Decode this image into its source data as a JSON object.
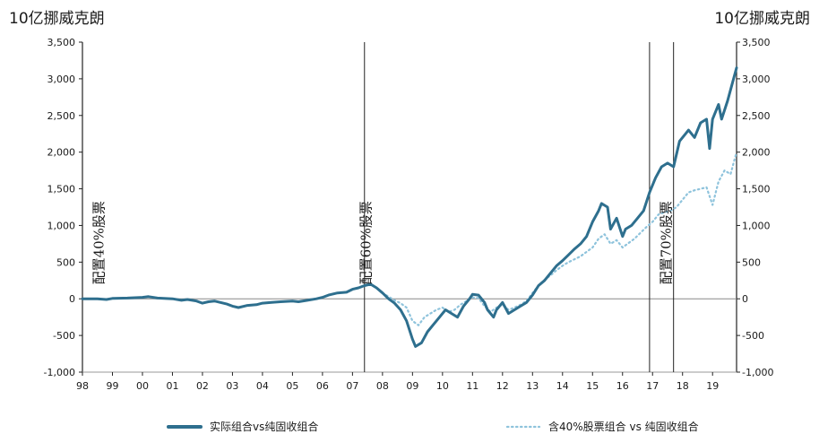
{
  "chart_data": {
    "type": "line",
    "y_unit_left": "10亿挪威克朗",
    "y_unit_right": "10亿挪威克朗",
    "ylim": [
      -1000,
      3500
    ],
    "yticks": [
      -1000,
      -500,
      0,
      500,
      1000,
      1500,
      2000,
      2500,
      3000,
      3500
    ],
    "ytick_labels": [
      "-1,000",
      "-500",
      "0",
      "500",
      "1,000",
      "1,500",
      "2,000",
      "2,500",
      "3,000",
      "3,500"
    ],
    "xlim": [
      1998,
      2019.8
    ],
    "xticks": [
      1998,
      1999,
      2000,
      2001,
      2002,
      2003,
      2004,
      2005,
      2006,
      2007,
      2008,
      2009,
      2010,
      2011,
      2012,
      2013,
      2014,
      2015,
      2016,
      2017,
      2018,
      2019
    ],
    "xtick_labels": [
      "98",
      "99",
      "00",
      "01",
      "02",
      "03",
      "04",
      "05",
      "06",
      "07",
      "08",
      "09",
      "10",
      "11",
      "12",
      "13",
      "14",
      "15",
      "16",
      "17",
      "18",
      "19"
    ],
    "grid": false,
    "legend_position": "bottom",
    "annotations": [
      {
        "text": "配置40%股票",
        "x": 1998.7
      },
      {
        "text": "配置60%股票",
        "x": 2007.6
      },
      {
        "text": "配置70%股票",
        "x": 2017.6
      }
    ],
    "vertical_lines": [
      2007.4,
      2016.9,
      2017.7
    ],
    "series": [
      {
        "name": "实际组合vs纯固收组合",
        "color": "#2e6f8e",
        "style": "solid",
        "x": [
          1998.0,
          1998.5,
          1998.8,
          1999.0,
          1999.5,
          2000.0,
          2000.2,
          2000.5,
          2001.0,
          2001.3,
          2001.5,
          2001.8,
          2002.0,
          2002.2,
          2002.4,
          2002.6,
          2002.8,
          2003.0,
          2003.2,
          2003.5,
          2003.8,
          2004.0,
          2004.3,
          2004.6,
          2005.0,
          2005.2,
          2005.5,
          2005.8,
          2006.0,
          2006.2,
          2006.5,
          2006.8,
          2007.0,
          2007.2,
          2007.4,
          2007.6,
          2007.8,
          2008.0,
          2008.2,
          2008.4,
          2008.6,
          2008.8,
          2009.0,
          2009.1,
          2009.3,
          2009.5,
          2009.7,
          2009.9,
          2010.1,
          2010.3,
          2010.5,
          2010.7,
          2010.9,
          2011.0,
          2011.2,
          2011.4,
          2011.5,
          2011.7,
          2011.8,
          2012.0,
          2012.2,
          2012.4,
          2012.6,
          2012.8,
          2013.0,
          2013.2,
          2013.4,
          2013.6,
          2013.8,
          2014.0,
          2014.2,
          2014.4,
          2014.6,
          2014.8,
          2015.0,
          2015.2,
          2015.3,
          2015.5,
          2015.6,
          2015.8,
          2016.0,
          2016.1,
          2016.3,
          2016.5,
          2016.7,
          2016.9,
          2017.1,
          2017.3,
          2017.5,
          2017.7,
          2017.9,
          2018.1,
          2018.2,
          2018.4,
          2018.6,
          2018.8,
          2018.9,
          2019.0,
          2019.2,
          2019.3,
          2019.5,
          2019.6,
          2019.8
        ],
        "values": [
          0,
          0,
          -10,
          5,
          10,
          20,
          30,
          10,
          0,
          -20,
          -10,
          -30,
          -60,
          -40,
          -30,
          -50,
          -70,
          -100,
          -120,
          -90,
          -80,
          -60,
          -50,
          -40,
          -30,
          -40,
          -20,
          0,
          20,
          50,
          80,
          90,
          130,
          150,
          180,
          200,
          150,
          80,
          0,
          -60,
          -150,
          -300,
          -550,
          -650,
          -600,
          -450,
          -350,
          -250,
          -150,
          -200,
          -250,
          -100,
          0,
          60,
          50,
          -50,
          -150,
          -250,
          -150,
          -50,
          -200,
          -150,
          -100,
          -50,
          50,
          180,
          250,
          350,
          450,
          520,
          600,
          680,
          750,
          850,
          1050,
          1200,
          1300,
          1250,
          950,
          1100,
          850,
          950,
          1000,
          1100,
          1200,
          1450,
          1650,
          1800,
          1850,
          1800,
          2150,
          2250,
          2300,
          2200,
          2400,
          2450,
          2050,
          2450,
          2650,
          2450,
          2700,
          2850,
          3150
        ]
      },
      {
        "name": "含40%股票组合 vs 纯固收组合",
        "color": "#8ec3dc",
        "style": "dotted",
        "x": [
          2008.0,
          2008.2,
          2008.4,
          2008.6,
          2008.8,
          2009.0,
          2009.2,
          2009.4,
          2009.6,
          2009.8,
          2010.0,
          2010.2,
          2010.4,
          2010.6,
          2010.8,
          2011.0,
          2011.2,
          2011.4,
          2011.6,
          2011.8,
          2012.0,
          2012.2,
          2012.4,
          2012.6,
          2012.8,
          2013.0,
          2013.2,
          2013.4,
          2013.6,
          2013.8,
          2014.0,
          2014.2,
          2014.4,
          2014.6,
          2014.8,
          2015.0,
          2015.2,
          2015.4,
          2015.6,
          2015.8,
          2016.0,
          2016.2,
          2016.4,
          2016.6,
          2016.8,
          2017.0,
          2017.2,
          2017.4,
          2017.6,
          2017.8,
          2018.0,
          2018.2,
          2018.4,
          2018.6,
          2018.8,
          2019.0,
          2019.2,
          2019.4,
          2019.6,
          2019.8
        ],
        "values": [
          80,
          30,
          -20,
          -60,
          -120,
          -300,
          -360,
          -250,
          -200,
          -150,
          -120,
          -180,
          -150,
          -80,
          -30,
          20,
          10,
          -100,
          -180,
          -120,
          -80,
          -150,
          -120,
          -80,
          -30,
          80,
          180,
          260,
          320,
          390,
          450,
          500,
          540,
          580,
          640,
          700,
          820,
          880,
          750,
          800,
          700,
          760,
          820,
          900,
          980,
          1050,
          1150,
          1180,
          1200,
          1250,
          1350,
          1450,
          1480,
          1500,
          1520,
          1280,
          1600,
          1750,
          1700,
          2000
        ]
      }
    ]
  }
}
